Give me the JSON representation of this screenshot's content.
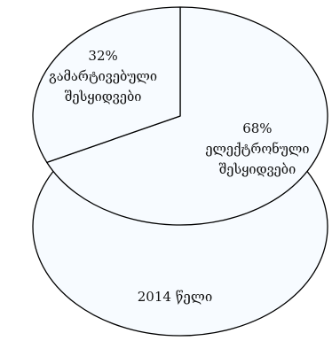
{
  "chart_data": {
    "type": "pie",
    "style": "3d",
    "slices": [
      {
        "label": "ელექტრონული შესყიდვები",
        "label_lines": [
          "ელექტრონული",
          "შესყიდვები"
        ],
        "value": 68,
        "value_label": "68%"
      },
      {
        "label": "გამარტივებული შესყიდვები",
        "label_lines": [
          "გამარტივებული",
          "შესყიდვები"
        ],
        "value": 32,
        "value_label": "32%"
      }
    ],
    "caption": "2014 წელი",
    "colors": {
      "fill": "#f7fbff",
      "side": "#f7fbff",
      "stroke": "#000000"
    }
  }
}
